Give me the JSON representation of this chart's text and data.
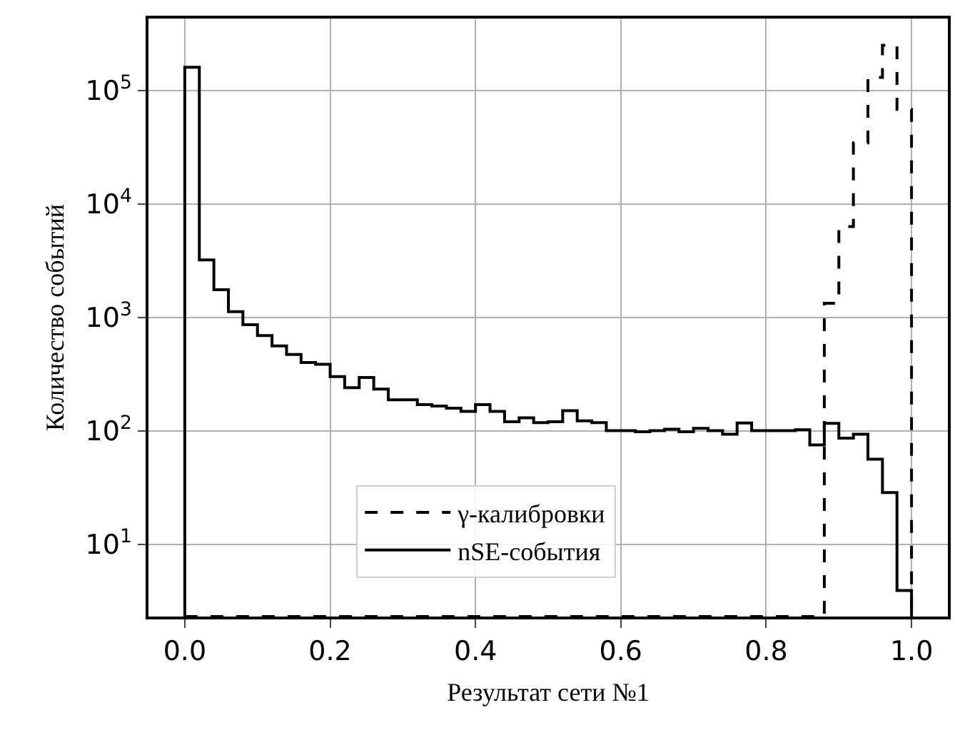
{
  "chart_data": {
    "type": "histogram",
    "xlabel": "Результат сети №1",
    "ylabel": "Количество событий",
    "bins": [
      0.0,
      0.02,
      0.04,
      0.06,
      0.08,
      0.1,
      0.12,
      0.14,
      0.16,
      0.18,
      0.2,
      0.22,
      0.24,
      0.26,
      0.28,
      0.3,
      0.32,
      0.34,
      0.36,
      0.38,
      0.4,
      0.42,
      0.44,
      0.46,
      0.48,
      0.5,
      0.52,
      0.54,
      0.56,
      0.58,
      0.6,
      0.62,
      0.64,
      0.66,
      0.68,
      0.7,
      0.72,
      0.74,
      0.76,
      0.78,
      0.8,
      0.82,
      0.84,
      0.86,
      0.88,
      0.9,
      0.92,
      0.94,
      0.96,
      0.98,
      1.0
    ],
    "series": [
      {
        "name": "γ-калибровки",
        "color": "#000000",
        "line_style": "dashed",
        "values": [
          null,
          null,
          null,
          null,
          null,
          null,
          null,
          null,
          null,
          null,
          null,
          null,
          null,
          null,
          null,
          null,
          null,
          null,
          null,
          null,
          null,
          null,
          null,
          null,
          null,
          null,
          null,
          null,
          null,
          null,
          null,
          null,
          null,
          null,
          null,
          null,
          null,
          null,
          null,
          null,
          null,
          null,
          null,
          null,
          1330,
          6300,
          34500,
          130000,
          250000,
          68000
        ]
      },
      {
        "name": "nSE-события",
        "color": "#000000",
        "line_style": "solid",
        "values": [
          160000,
          3200,
          1750,
          1120,
          860,
          690,
          560,
          470,
          400,
          385,
          300,
          240,
          295,
          233,
          187,
          187,
          170,
          165,
          158,
          148,
          170,
          148,
          120,
          130,
          118,
          120,
          150,
          122,
          118,
          100,
          100,
          98,
          100,
          103,
          98,
          105,
          100,
          93,
          117,
          100,
          100,
          100,
          102,
          75,
          116,
          86,
          93,
          56,
          28.5,
          3.9
        ]
      }
    ],
    "xlim": [
      -0.05,
      1.05
    ],
    "xticks": [
      {
        "value": 0.0,
        "label": "0.0"
      },
      0.2,
      0.4,
      0.6,
      0.8,
      {
        "value": 1.0,
        "label": "1.0"
      }
    ],
    "ylim": [
      2.3,
      430000
    ],
    "yticks": [
      {
        "value": 10,
        "label": "10$^{1}$"
      },
      {
        "value": 100,
        "label": "10$^{2}$"
      },
      {
        "value": 1000,
        "label": "10$^{3}$"
      },
      {
        "value": 10000,
        "label": "10$^{4}$"
      },
      {
        "value": 100000,
        "label": "10$^{5}$"
      }
    ],
    "log": "y",
    "grid": true,
    "legend": "bottom"
  }
}
